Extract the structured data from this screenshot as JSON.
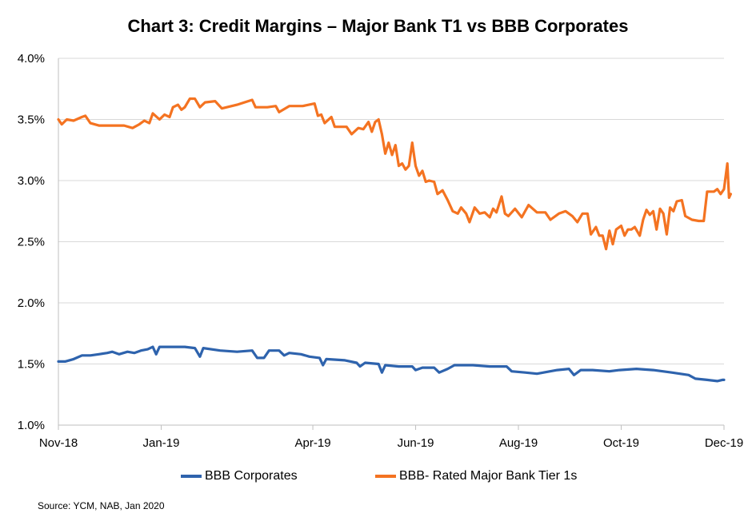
{
  "chart_data": {
    "type": "line",
    "title": "Chart 3: Credit Margins – Major Bank T1 vs BBB Corporates",
    "xlabel": "",
    "ylabel": "",
    "ylim": [
      1.0,
      4.0
    ],
    "y_ticks": [
      "1.0%",
      "1.5%",
      "2.0%",
      "2.5%",
      "3.0%",
      "3.5%",
      "4.0%"
    ],
    "x_range": [
      "2018-11-01",
      "2019-12-01"
    ],
    "x_ticks": [
      {
        "date": "2018-11-01",
        "label": "Nov-18"
      },
      {
        "date": "2019-01-01",
        "label": "Jan-19"
      },
      {
        "date": "2019-04-01",
        "label": "Apr-19"
      },
      {
        "date": "2019-06-01",
        "label": "Jun-19"
      },
      {
        "date": "2019-08-01",
        "label": "Aug-19"
      },
      {
        "date": "2019-10-01",
        "label": "Oct-19"
      },
      {
        "date": "2019-12-01",
        "label": "Dec-19"
      }
    ],
    "grid": "horizontal",
    "legend_position": "bottom",
    "series": [
      {
        "name": "BBB Corporates",
        "color": "#2e63ad",
        "points": [
          [
            "2018-11-01",
            1.52
          ],
          [
            "2018-11-05",
            1.52
          ],
          [
            "2018-11-10",
            1.54
          ],
          [
            "2018-11-15",
            1.57
          ],
          [
            "2018-11-20",
            1.57
          ],
          [
            "2018-11-25",
            1.58
          ],
          [
            "2018-11-30",
            1.59
          ],
          [
            "2018-12-03",
            1.6
          ],
          [
            "2018-12-07",
            1.58
          ],
          [
            "2018-12-12",
            1.6
          ],
          [
            "2018-12-16",
            1.59
          ],
          [
            "2018-12-20",
            1.61
          ],
          [
            "2018-12-24",
            1.62
          ],
          [
            "2018-12-27",
            1.64
          ],
          [
            "2018-12-29",
            1.58
          ],
          [
            "2018-12-31",
            1.64
          ],
          [
            "2019-01-08",
            1.64
          ],
          [
            "2019-01-15",
            1.64
          ],
          [
            "2019-01-21",
            1.63
          ],
          [
            "2019-01-24",
            1.56
          ],
          [
            "2019-01-26",
            1.63
          ],
          [
            "2019-02-05",
            1.61
          ],
          [
            "2019-02-15",
            1.6
          ],
          [
            "2019-02-24",
            1.61
          ],
          [
            "2019-02-27",
            1.55
          ],
          [
            "2019-03-03",
            1.55
          ],
          [
            "2019-03-06",
            1.61
          ],
          [
            "2019-03-12",
            1.61
          ],
          [
            "2019-03-15",
            1.57
          ],
          [
            "2019-03-18",
            1.59
          ],
          [
            "2019-03-25",
            1.58
          ],
          [
            "2019-03-30",
            1.56
          ],
          [
            "2019-04-05",
            1.55
          ],
          [
            "2019-04-07",
            1.49
          ],
          [
            "2019-04-09",
            1.54
          ],
          [
            "2019-04-20",
            1.53
          ],
          [
            "2019-04-27",
            1.51
          ],
          [
            "2019-04-29",
            1.48
          ],
          [
            "2019-05-02",
            1.51
          ],
          [
            "2019-05-10",
            1.5
          ],
          [
            "2019-05-12",
            1.43
          ],
          [
            "2019-05-14",
            1.49
          ],
          [
            "2019-05-22",
            1.48
          ],
          [
            "2019-05-30",
            1.48
          ],
          [
            "2019-06-01",
            1.45
          ],
          [
            "2019-06-05",
            1.47
          ],
          [
            "2019-06-12",
            1.47
          ],
          [
            "2019-06-15",
            1.43
          ],
          [
            "2019-06-20",
            1.46
          ],
          [
            "2019-06-24",
            1.49
          ],
          [
            "2019-07-05",
            1.49
          ],
          [
            "2019-07-15",
            1.48
          ],
          [
            "2019-07-25",
            1.48
          ],
          [
            "2019-07-28",
            1.44
          ],
          [
            "2019-08-05",
            1.43
          ],
          [
            "2019-08-12",
            1.42
          ],
          [
            "2019-08-24",
            1.45
          ],
          [
            "2019-08-31",
            1.46
          ],
          [
            "2019-09-03",
            1.41
          ],
          [
            "2019-09-07",
            1.45
          ],
          [
            "2019-09-14",
            1.45
          ],
          [
            "2019-09-24",
            1.44
          ],
          [
            "2019-09-30",
            1.45
          ],
          [
            "2019-10-10",
            1.46
          ],
          [
            "2019-10-20",
            1.45
          ],
          [
            "2019-10-31",
            1.43
          ],
          [
            "2019-11-10",
            1.41
          ],
          [
            "2019-11-14",
            1.38
          ],
          [
            "2019-11-21",
            1.37
          ],
          [
            "2019-11-27",
            1.36
          ],
          [
            "2019-11-30",
            1.37
          ],
          [
            "2019-12-01",
            1.37
          ]
        ]
      },
      {
        "name": "BBB- Rated Major Bank Tier 1s",
        "color": "#f47321",
        "points": [
          [
            "2018-11-01",
            3.5
          ],
          [
            "2018-11-03",
            3.46
          ],
          [
            "2018-11-06",
            3.5
          ],
          [
            "2018-11-10",
            3.49
          ],
          [
            "2018-11-15",
            3.52
          ],
          [
            "2018-11-17",
            3.53
          ],
          [
            "2018-11-20",
            3.47
          ],
          [
            "2018-11-25",
            3.45
          ],
          [
            "2018-12-10",
            3.45
          ],
          [
            "2018-12-15",
            3.43
          ],
          [
            "2018-12-19",
            3.46
          ],
          [
            "2018-12-22",
            3.49
          ],
          [
            "2018-12-25",
            3.47
          ],
          [
            "2018-12-27",
            3.55
          ],
          [
            "2018-12-31",
            3.5
          ],
          [
            "2019-01-03",
            3.54
          ],
          [
            "2019-01-06",
            3.52
          ],
          [
            "2019-01-08",
            3.6
          ],
          [
            "2019-01-11",
            3.62
          ],
          [
            "2019-01-13",
            3.58
          ],
          [
            "2019-01-15",
            3.6
          ],
          [
            "2019-01-18",
            3.67
          ],
          [
            "2019-01-21",
            3.67
          ],
          [
            "2019-01-24",
            3.6
          ],
          [
            "2019-01-27",
            3.64
          ],
          [
            "2019-02-02",
            3.65
          ],
          [
            "2019-02-06",
            3.59
          ],
          [
            "2019-02-15",
            3.62
          ],
          [
            "2019-02-24",
            3.66
          ],
          [
            "2019-02-26",
            3.6
          ],
          [
            "2019-03-05",
            3.6
          ],
          [
            "2019-03-10",
            3.61
          ],
          [
            "2019-03-12",
            3.56
          ],
          [
            "2019-03-18",
            3.61
          ],
          [
            "2019-03-26",
            3.61
          ],
          [
            "2019-04-02",
            3.63
          ],
          [
            "2019-04-04",
            3.53
          ],
          [
            "2019-04-06",
            3.54
          ],
          [
            "2019-04-08",
            3.47
          ],
          [
            "2019-04-12",
            3.52
          ],
          [
            "2019-04-14",
            3.44
          ],
          [
            "2019-04-21",
            3.44
          ],
          [
            "2019-04-24",
            3.38
          ],
          [
            "2019-04-28",
            3.43
          ],
          [
            "2019-05-01",
            3.42
          ],
          [
            "2019-05-04",
            3.48
          ],
          [
            "2019-05-06",
            3.4
          ],
          [
            "2019-05-08",
            3.48
          ],
          [
            "2019-05-10",
            3.5
          ],
          [
            "2019-05-12",
            3.38
          ],
          [
            "2019-05-14",
            3.22
          ],
          [
            "2019-05-16",
            3.31
          ],
          [
            "2019-05-18",
            3.21
          ],
          [
            "2019-05-20",
            3.29
          ],
          [
            "2019-05-22",
            3.12
          ],
          [
            "2019-05-24",
            3.14
          ],
          [
            "2019-05-26",
            3.09
          ],
          [
            "2019-05-28",
            3.12
          ],
          [
            "2019-05-30",
            3.31
          ],
          [
            "2019-06-01",
            3.12
          ],
          [
            "2019-06-03",
            3.04
          ],
          [
            "2019-06-05",
            3.08
          ],
          [
            "2019-06-07",
            2.99
          ],
          [
            "2019-06-09",
            3.0
          ],
          [
            "2019-06-12",
            2.99
          ],
          [
            "2019-06-14",
            2.89
          ],
          [
            "2019-06-17",
            2.92
          ],
          [
            "2019-06-20",
            2.84
          ],
          [
            "2019-06-23",
            2.75
          ],
          [
            "2019-06-26",
            2.73
          ],
          [
            "2019-06-28",
            2.78
          ],
          [
            "2019-07-01",
            2.73
          ],
          [
            "2019-07-03",
            2.66
          ],
          [
            "2019-07-06",
            2.78
          ],
          [
            "2019-07-09",
            2.73
          ],
          [
            "2019-07-12",
            2.74
          ],
          [
            "2019-07-15",
            2.7
          ],
          [
            "2019-07-17",
            2.77
          ],
          [
            "2019-07-19",
            2.74
          ],
          [
            "2019-07-22",
            2.87
          ],
          [
            "2019-07-24",
            2.73
          ],
          [
            "2019-07-26",
            2.71
          ],
          [
            "2019-07-30",
            2.77
          ],
          [
            "2019-08-03",
            2.7
          ],
          [
            "2019-08-07",
            2.8
          ],
          [
            "2019-08-12",
            2.74
          ],
          [
            "2019-08-17",
            2.74
          ],
          [
            "2019-08-20",
            2.68
          ],
          [
            "2019-08-25",
            2.73
          ],
          [
            "2019-08-29",
            2.75
          ],
          [
            "2019-09-02",
            2.71
          ],
          [
            "2019-09-05",
            2.66
          ],
          [
            "2019-09-08",
            2.73
          ],
          [
            "2019-09-11",
            2.73
          ],
          [
            "2019-09-13",
            2.56
          ],
          [
            "2019-09-16",
            2.62
          ],
          [
            "2019-09-18",
            2.55
          ],
          [
            "2019-09-20",
            2.55
          ],
          [
            "2019-09-22",
            2.44
          ],
          [
            "2019-09-24",
            2.59
          ],
          [
            "2019-09-26",
            2.48
          ],
          [
            "2019-09-28",
            2.6
          ],
          [
            "2019-10-01",
            2.63
          ],
          [
            "2019-10-03",
            2.55
          ],
          [
            "2019-10-05",
            2.6
          ],
          [
            "2019-10-07",
            2.6
          ],
          [
            "2019-10-09",
            2.62
          ],
          [
            "2019-10-12",
            2.55
          ],
          [
            "2019-10-14",
            2.68
          ],
          [
            "2019-10-16",
            2.76
          ],
          [
            "2019-10-18",
            2.72
          ],
          [
            "2019-10-20",
            2.75
          ],
          [
            "2019-10-22",
            2.6
          ],
          [
            "2019-10-24",
            2.77
          ],
          [
            "2019-10-26",
            2.73
          ],
          [
            "2019-10-28",
            2.56
          ],
          [
            "2019-10-30",
            2.78
          ],
          [
            "2019-11-01",
            2.75
          ],
          [
            "2019-11-03",
            2.83
          ],
          [
            "2019-11-06",
            2.84
          ],
          [
            "2019-11-08",
            2.71
          ],
          [
            "2019-11-12",
            2.68
          ],
          [
            "2019-11-16",
            2.67
          ],
          [
            "2019-11-19",
            2.67
          ],
          [
            "2019-11-21",
            2.91
          ],
          [
            "2019-11-25",
            2.91
          ],
          [
            "2019-11-27",
            2.93
          ],
          [
            "2019-11-29",
            2.89
          ],
          [
            "2019-12-01",
            2.93
          ],
          [
            "2019-12-03",
            3.14
          ],
          [
            "2019-12-04",
            2.86
          ],
          [
            "2019-12-05",
            2.89
          ]
        ]
      }
    ],
    "source": "Source: YCM, NAB, Jan 2020"
  }
}
